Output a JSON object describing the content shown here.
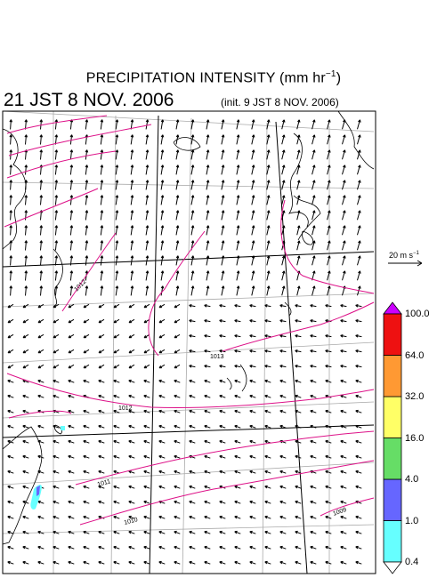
{
  "header": {
    "title_main": "PRECIPITATION INTENSITY (mm hr",
    "title_sup": "−1",
    "title_end": ")",
    "valid_time": "21 JST 8 NOV. 2006",
    "init_time": "(init. 9 JST 8 NOV. 2006)"
  },
  "reference_vector": {
    "value": "20",
    "unit": "m s",
    "unit_sup": "−1"
  },
  "isobars": [
    "1012",
    "1013",
    "1012",
    "1011",
    "1010",
    "1009"
  ],
  "color_scale": {
    "levels": [
      "0.4",
      "1.0",
      "4.0",
      "16.0",
      "32.0",
      "64.0",
      "100.0"
    ],
    "colors": [
      "#66ffff",
      "#6666ff",
      "#66dd66",
      "#ffff66",
      "#ff9933",
      "#ee1111"
    ],
    "overflow_color": "#cc00ff",
    "underflow_color": "#ffffff"
  },
  "colors": {
    "isobar": "#dd1188",
    "coast": "#000000",
    "grid": "#aaaaaa"
  }
}
